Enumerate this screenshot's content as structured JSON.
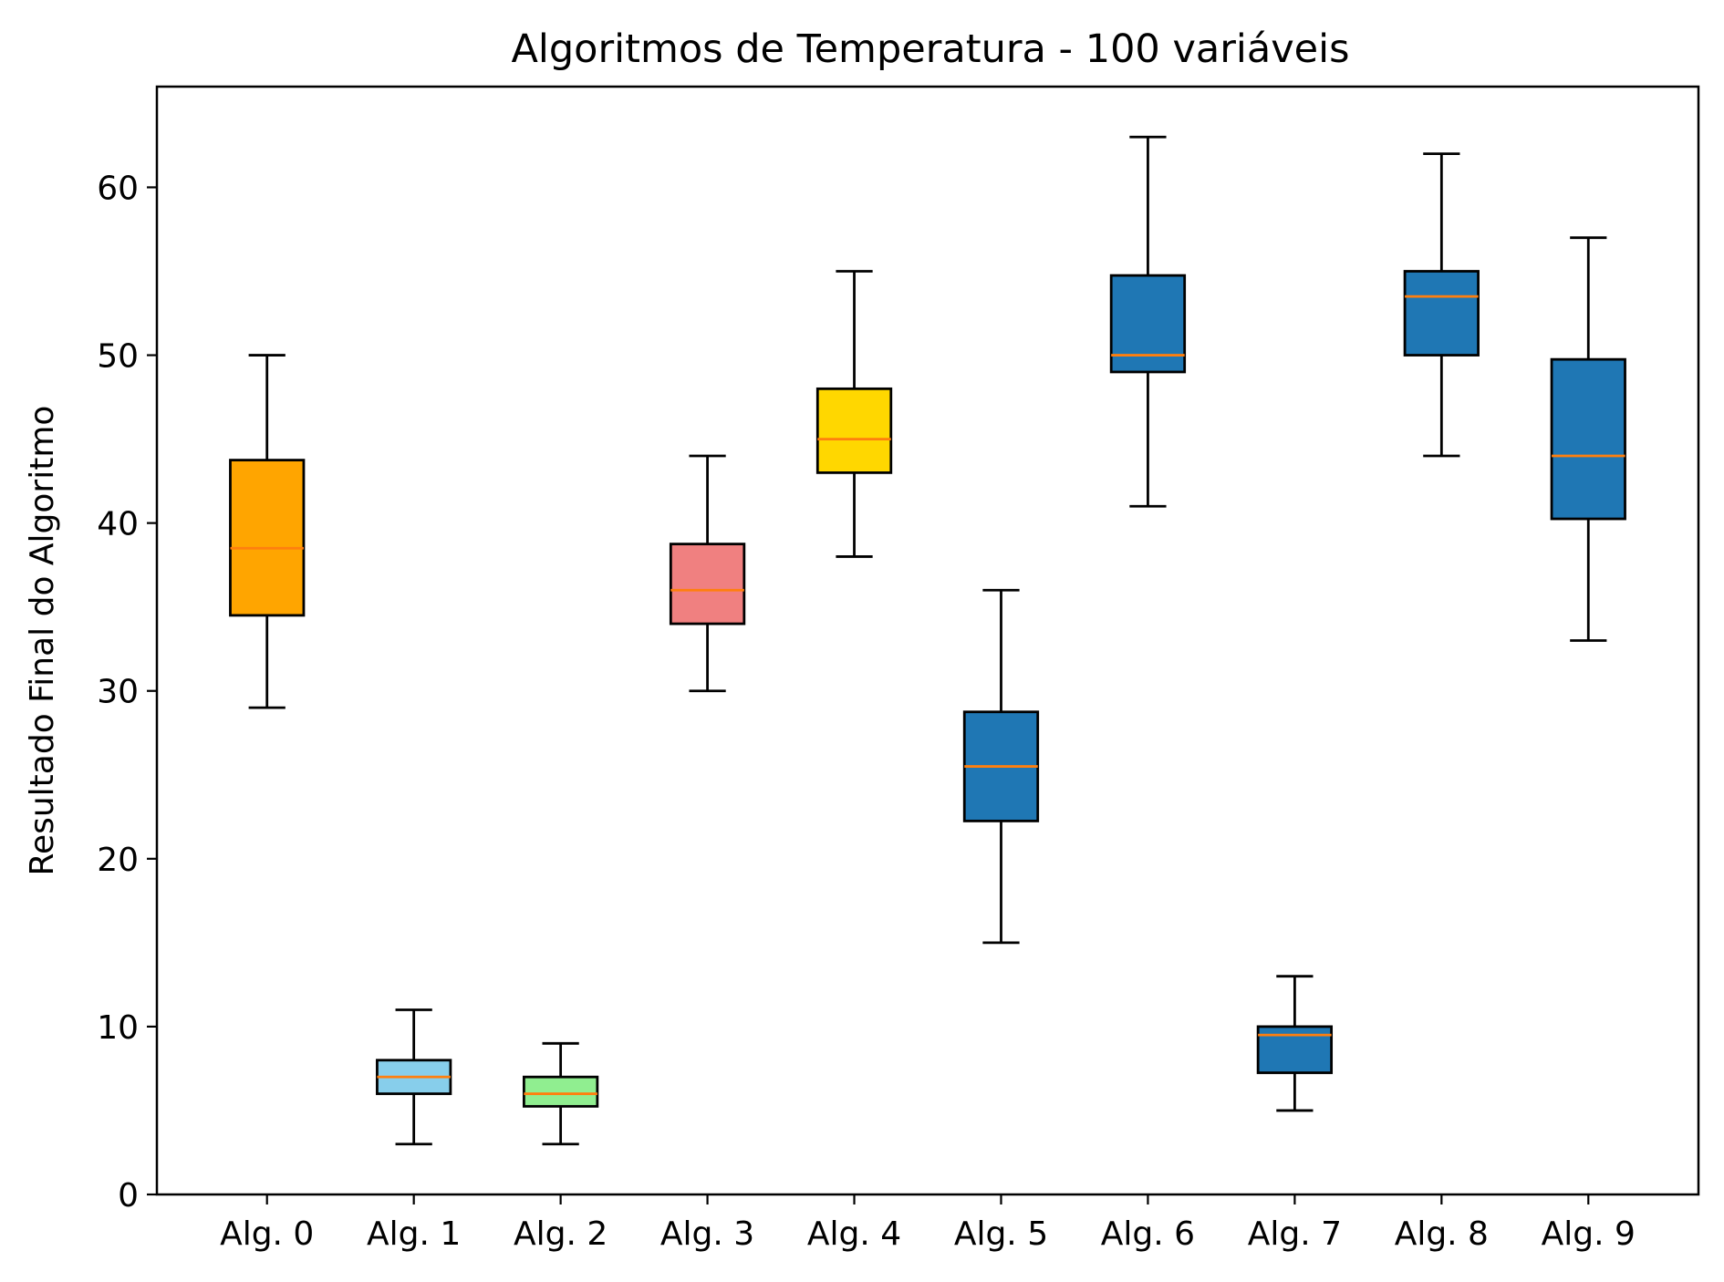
{
  "chart_data": {
    "type": "boxplot",
    "title": "Algoritmos de Temperatura - 100 variáveis",
    "xlabel": "",
    "ylabel": "Resultado Final do Algoritmo",
    "ylim": [
      0,
      66
    ],
    "yticks": [
      0,
      10,
      20,
      30,
      40,
      50,
      60
    ],
    "grid": false,
    "median_color": "#ff7f0e",
    "categories": [
      "Alg. 0",
      "Alg. 1",
      "Alg. 2",
      "Alg. 3",
      "Alg. 4",
      "Alg. 5",
      "Alg. 6",
      "Alg. 7",
      "Alg. 8",
      "Alg. 9"
    ],
    "boxes": [
      {
        "whisker_low": 29,
        "q1": 34.5,
        "median": 38.5,
        "q3": 43.75,
        "whisker_high": 50,
        "color": "#ffa500"
      },
      {
        "whisker_low": 3,
        "q1": 6,
        "median": 7,
        "q3": 8,
        "whisker_high": 11,
        "color": "#87ceeb"
      },
      {
        "whisker_low": 3,
        "q1": 5.25,
        "median": 6,
        "q3": 7,
        "whisker_high": 9,
        "color": "#90ee90"
      },
      {
        "whisker_low": 30,
        "q1": 34,
        "median": 36,
        "q3": 38.75,
        "whisker_high": 44,
        "color": "#f08080"
      },
      {
        "whisker_low": 38,
        "q1": 43,
        "median": 45,
        "q3": 48,
        "whisker_high": 55,
        "color": "#ffd700"
      },
      {
        "whisker_low": 15,
        "q1": 22.25,
        "median": 25.5,
        "q3": 28.75,
        "whisker_high": 36,
        "color": "#1f77b4"
      },
      {
        "whisker_low": 41,
        "q1": 49,
        "median": 50,
        "q3": 54.75,
        "whisker_high": 63,
        "color": "#1f77b4"
      },
      {
        "whisker_low": 5,
        "q1": 7.25,
        "median": 9.5,
        "q3": 10,
        "whisker_high": 13,
        "color": "#1f77b4"
      },
      {
        "whisker_low": 44,
        "q1": 50,
        "median": 53.5,
        "q3": 55,
        "whisker_high": 62,
        "color": "#1f77b4"
      },
      {
        "whisker_low": 33,
        "q1": 40.25,
        "median": 44,
        "q3": 49.75,
        "whisker_high": 57,
        "color": "#1f77b4"
      }
    ]
  }
}
